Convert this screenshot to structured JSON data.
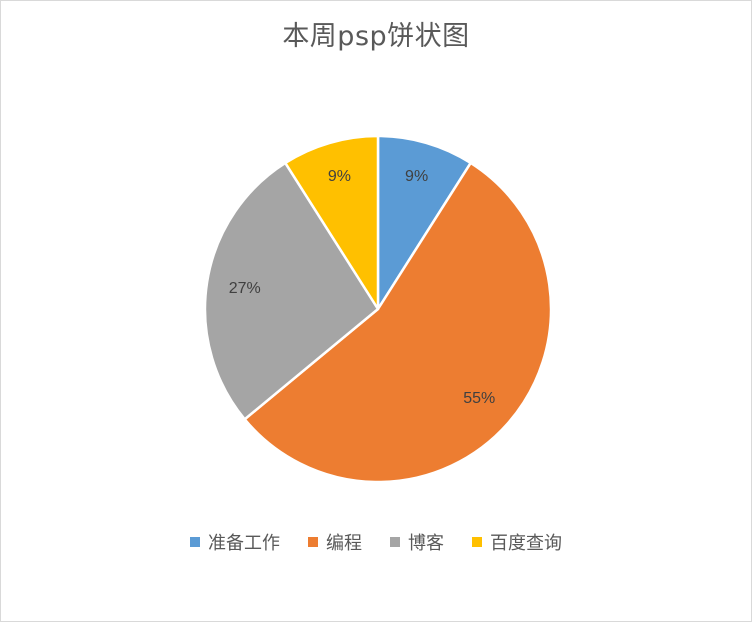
{
  "chart_data": {
    "type": "pie",
    "title": "本周psp饼状图",
    "categories": [
      "准备工作",
      "编程",
      "博客",
      "百度查询"
    ],
    "values": [
      9,
      55,
      27,
      9
    ],
    "labels": [
      "9%",
      "55%",
      "27%",
      "9%"
    ],
    "colors": [
      "#5b9bd5",
      "#ed7d31",
      "#a5a5a5",
      "#ffc000"
    ],
    "legend_position": "bottom"
  }
}
